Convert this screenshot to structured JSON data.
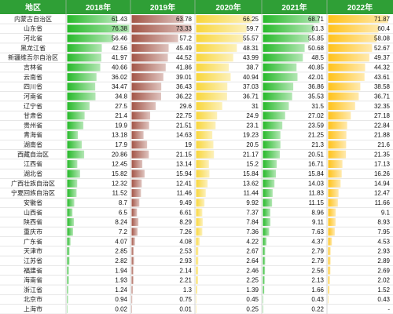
{
  "chart_data": {
    "type": "table",
    "header": [
      "地区",
      "2018年",
      "2019年",
      "2020年",
      "2021年",
      "2022年"
    ],
    "regions": [
      "内蒙古自治区",
      "山东省",
      "河北省",
      "黑龙江省",
      "新疆维吾尔自治区",
      "吉林省",
      "云南省",
      "四川省",
      "河南省",
      "辽宁省",
      "甘肃省",
      "贵州省",
      "青海省",
      "湖南省",
      "西藏自治区",
      "江西省",
      "湖北省",
      "广西壮族自治区",
      "宁夏回族自治区",
      "安徽省",
      "山西省",
      "陕西省",
      "重庆市",
      "广东省",
      "天津市",
      "江苏省",
      "福建省",
      "海南省",
      "浙江省",
      "北京市",
      "上海市"
    ],
    "series": [
      {
        "name": "2018年",
        "values": [
          61.43,
          76.38,
          56.46,
          42.56,
          41.97,
          40.66,
          36.02,
          34.47,
          34.8,
          27.5,
          21.4,
          19.9,
          13.18,
          17.9,
          20.86,
          12.45,
          15.82,
          12.32,
          11.52,
          8.7,
          6.5,
          8.24,
          7.2,
          4.07,
          2.85,
          2.82,
          1.94,
          1.93,
          1.24,
          0.94,
          0.02
        ],
        "labels": [
          "61.43",
          "76.38",
          "56.46",
          "42.56",
          "41.97",
          "40.66",
          "36.02",
          "34.47",
          "34.8",
          "27.5",
          "21.4",
          "19.9",
          "13.18",
          "17.9",
          "20.86",
          "12.45",
          "15.82",
          "12.32",
          "11.52",
          "8.7",
          "6.5",
          "8.24",
          "7.2",
          "4.07",
          "2.85",
          "2.82",
          "1.94",
          "1.93",
          "1.24",
          "0.94",
          "0.02"
        ],
        "color": "#27b92a"
      },
      {
        "name": "2019年",
        "values": [
          63.78,
          73.33,
          57.2,
          45.49,
          44.52,
          41.86,
          39.01,
          36.43,
          36.22,
          29.6,
          22.75,
          21.51,
          14.63,
          19,
          21.15,
          13.14,
          15.94,
          12.41,
          11.46,
          9.49,
          6.61,
          8.29,
          7.26,
          4.08,
          2.53,
          2.93,
          2.14,
          2.21,
          1.3,
          0.75,
          0.01
        ],
        "labels": [
          "63.78",
          "73.33",
          "57.2",
          "45.49",
          "44.52",
          "41.86",
          "39.01",
          "36.43",
          "36.22",
          "29.6",
          "22.75",
          "21.51",
          "14.63",
          "19",
          "21.15",
          "13.14",
          "15.94",
          "12.41",
          "11.46",
          "9.49",
          "6.61",
          "8.29",
          "7.26",
          "4.08",
          "2.53",
          "2.93",
          "2.14",
          "2.21",
          "1.3",
          "0.75",
          "0.01"
        ],
        "color": "#a35547"
      },
      {
        "name": "2020年",
        "values": [
          66.25,
          59.7,
          55.57,
          48.31,
          43.99,
          38.7,
          40.94,
          37.03,
          36.71,
          31,
          24.9,
          23.1,
          19.23,
          20.5,
          21.17,
          15.2,
          15.84,
          13.62,
          11.44,
          9.92,
          7.37,
          7.84,
          7.36,
          4.22,
          2.67,
          2.64,
          2.46,
          2.25,
          1.39,
          0.45,
          0.25
        ],
        "labels": [
          "66.25",
          "59.7",
          "55.57",
          "48.31",
          "43.99",
          "38.7",
          "40.94",
          "37.03",
          "36.71",
          "31",
          "24.9",
          "23.1",
          "19.23",
          "20.5",
          "21.17",
          "15.2",
          "15.84",
          "13.62",
          "11.44",
          "9.92",
          "7.37",
          "7.84",
          "7.36",
          "4.22",
          "2.67",
          "2.64",
          "2.46",
          "2.25",
          "1.39",
          "0.45",
          "0.25"
        ],
        "color": "#f8d63c"
      },
      {
        "name": "2021年",
        "values": [
          68.71,
          61.3,
          55.85,
          50.68,
          48.5,
          40.85,
          42.01,
          36.86,
          35.53,
          31.5,
          27.02,
          23.59,
          21.25,
          21.3,
          20.51,
          16.71,
          15.84,
          14.03,
          11.83,
          11.15,
          8.96,
          9.11,
          7.63,
          4.37,
          2.79,
          2.79,
          2.56,
          2.13,
          1.66,
          0.43,
          0.22
        ],
        "labels": [
          "68.71",
          "61.3",
          "55.85",
          "50.68",
          "48.5",
          "40.85",
          "42.01",
          "36.86",
          "35.53",
          "31.5",
          "27.02",
          "23.59",
          "21.25",
          "21.3",
          "20.51",
          "16.71",
          "15.84",
          "14.03",
          "11.83",
          "11.15",
          "8.96",
          "9.11",
          "7.63",
          "4.37",
          "2.79",
          "2.79",
          "2.56",
          "2.13",
          "1.66",
          "0.43",
          "0.22"
        ],
        "color": "#27b92a"
      },
      {
        "name": "2022年",
        "values": [
          71.87,
          60.4,
          58.08,
          52.67,
          49.37,
          44.32,
          43.61,
          38.58,
          36.71,
          32.35,
          27.18,
          22.84,
          21.88,
          21.6,
          21.35,
          17.13,
          16.26,
          14.94,
          12.47,
          11.66,
          9.1,
          8.93,
          7.95,
          4.53,
          2.93,
          2.89,
          2.69,
          2.02,
          1.52,
          0.43,
          null
        ],
        "labels": [
          "71.87",
          "60.4",
          "58.08",
          "52.67",
          "49.37",
          "44.32",
          "43.61",
          "38.58",
          "36.71",
          "32.35",
          "27.18",
          "22.84",
          "21.88",
          "21.6",
          "21.35",
          "17.13",
          "16.26",
          "14.94",
          "12.47",
          "11.66",
          "9.1",
          "8.93",
          "7.95",
          "4.53",
          "2.93",
          "2.89",
          "2.69",
          "2.02",
          "1.52",
          "0.43",
          "-"
        ],
        "color": "#ffc21a"
      }
    ],
    "xlim": [
      0,
      76.38
    ],
    "colors": {
      "header_bg": "#2f9f36",
      "grid": "#cfcfcf"
    }
  }
}
